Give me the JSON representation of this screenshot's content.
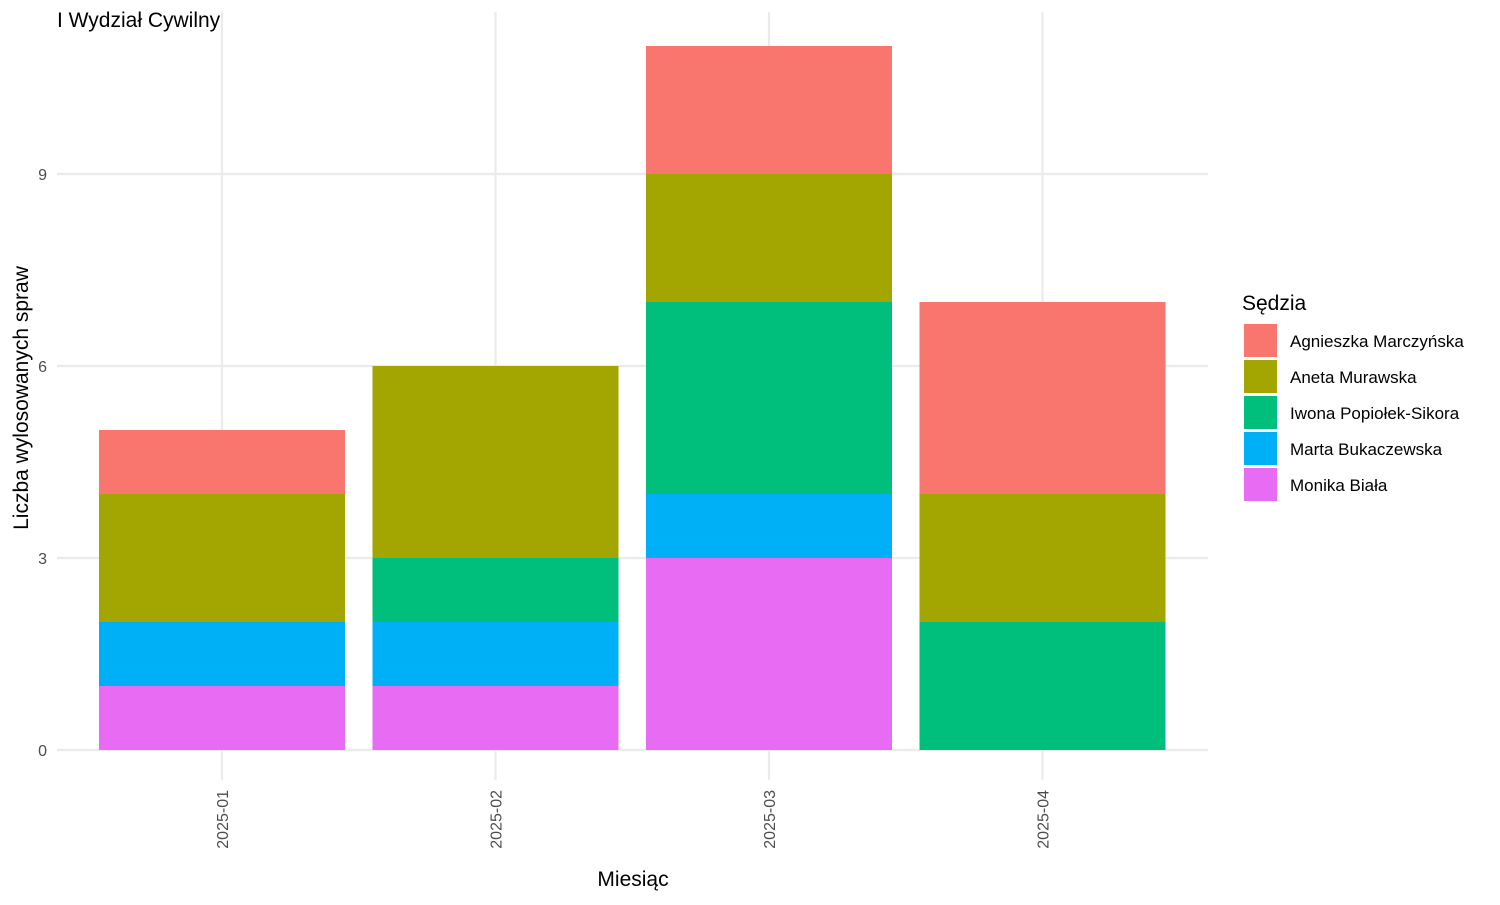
{
  "chart_data": {
    "type": "bar",
    "stacked": true,
    "title": "I Wydział Cywilny",
    "xlabel": "Miesiąc",
    "ylabel": "Liczba wylosowanych spraw",
    "categories": [
      "2025-01",
      "2025-02",
      "2025-03",
      "2025-04"
    ],
    "y_ticks": [
      0,
      3,
      6,
      9
    ],
    "ylim": [
      0,
      11
    ],
    "grid": true,
    "legend": {
      "title": "Sędzia",
      "placement": "right"
    },
    "series": [
      {
        "name": "Monika Biała",
        "color": "#E76BF3",
        "values": [
          1,
          1,
          3,
          0
        ]
      },
      {
        "name": "Marta Bukaczewska",
        "color": "#00B0F6",
        "values": [
          1,
          1,
          1,
          0
        ]
      },
      {
        "name": "Iwona Popiołek-Sikora",
        "color": "#00BF7D",
        "values": [
          0,
          1,
          3,
          2
        ]
      },
      {
        "name": "Aneta Murawska",
        "color": "#A3A500",
        "values": [
          2,
          3,
          2,
          2
        ]
      },
      {
        "name": "Agnieszka Marczyńska",
        "color": "#F8766D",
        "values": [
          1,
          0,
          2,
          3
        ]
      }
    ],
    "legend_order": [
      "Agnieszka Marczyńska",
      "Aneta Murawska",
      "Iwona Popiołek-Sikora",
      "Marta Bukaczewska",
      "Monika Biała"
    ]
  }
}
